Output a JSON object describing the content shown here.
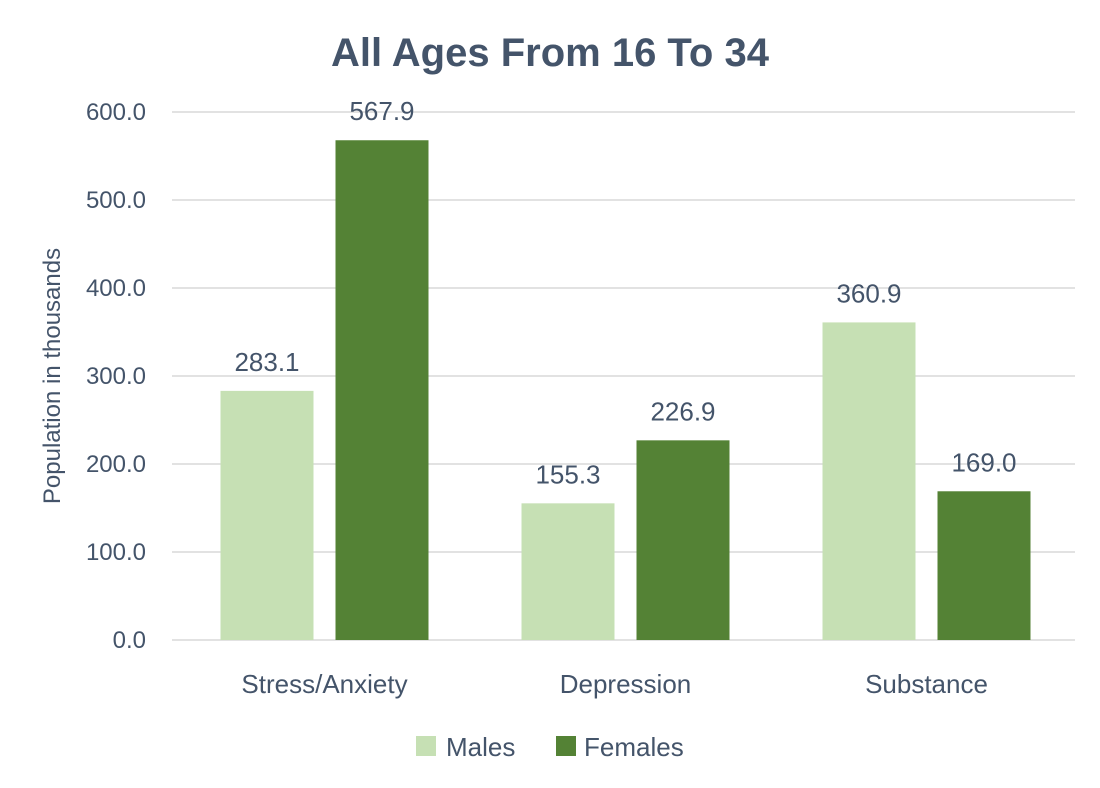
{
  "chart_data": {
    "type": "bar",
    "title": "All Ages From 16 To 34",
    "xlabel": "",
    "ylabel": "Population in thousands",
    "categories": [
      "Stress/Anxiety",
      "Depression",
      "Substance"
    ],
    "series": [
      {
        "name": "Males",
        "values": [
          283.1,
          155.3,
          360.9
        ],
        "color": "#c6e0b4"
      },
      {
        "name": "Females",
        "values": [
          567.9,
          226.9,
          169.0
        ],
        "color": "#548235"
      }
    ],
    "data_labels": [
      [
        "283.1",
        "155.3",
        "360.9"
      ],
      [
        "567.9",
        "226.9",
        "169.0"
      ]
    ],
    "ylim": [
      0,
      600
    ],
    "yticks": [
      "0.0",
      "100.0",
      "200.0",
      "300.0",
      "400.0",
      "500.0",
      "600.0"
    ],
    "grid": true,
    "legend_position": "bottom"
  }
}
